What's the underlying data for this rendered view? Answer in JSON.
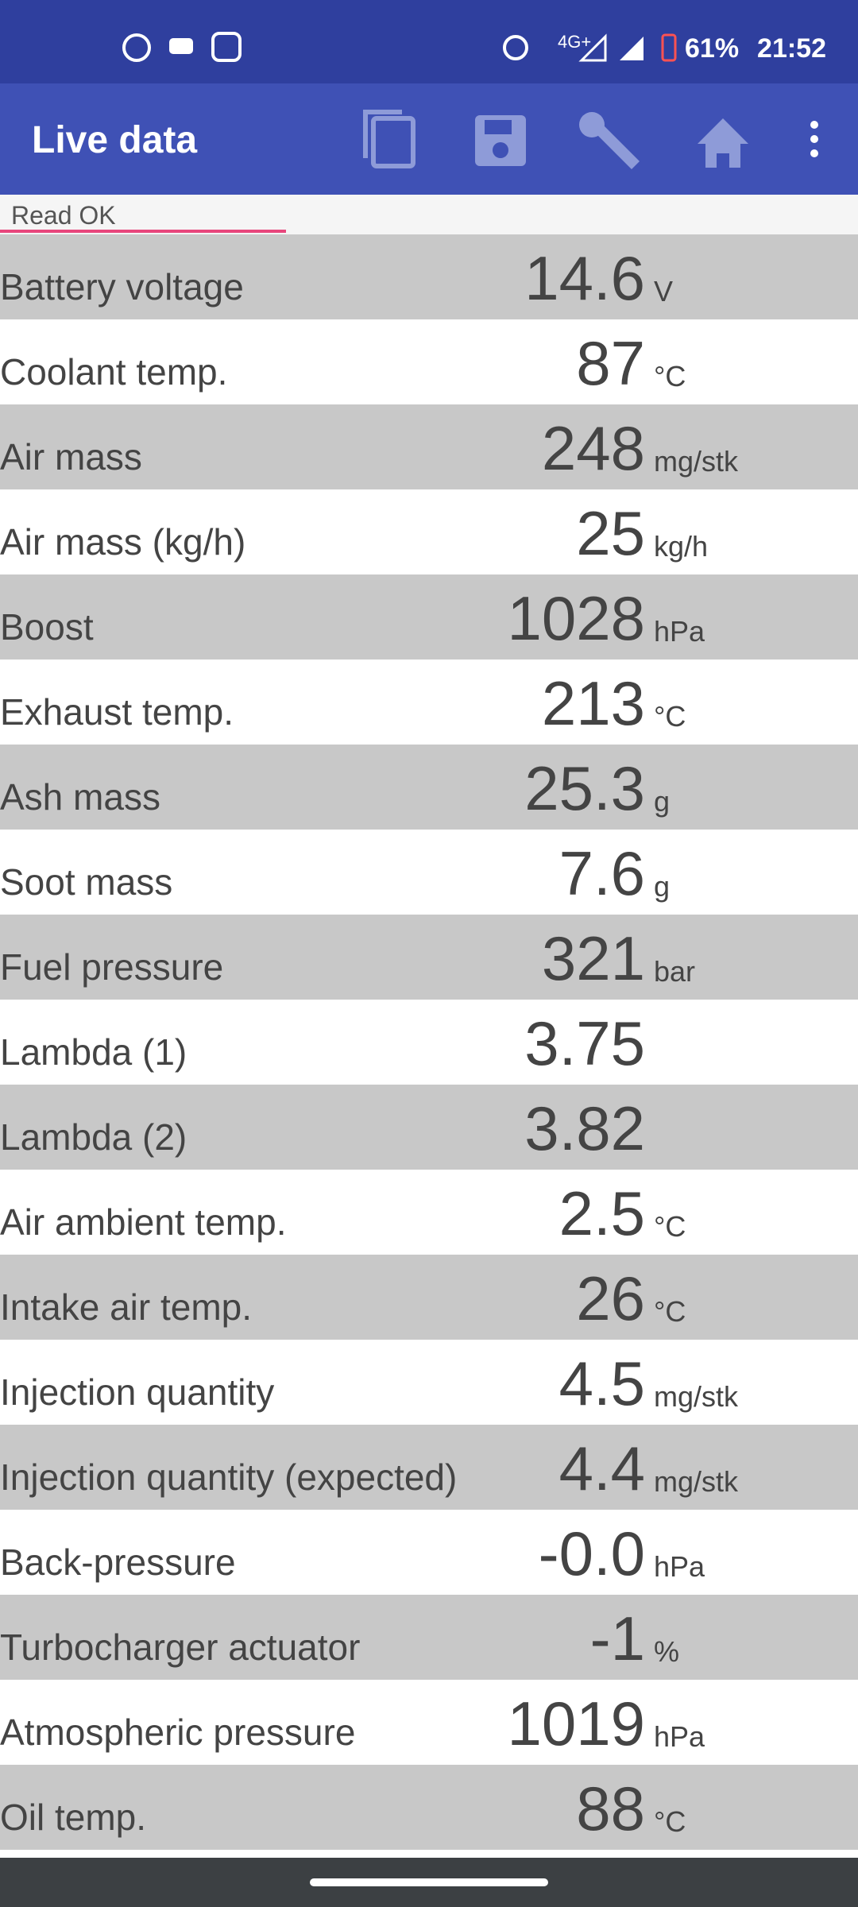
{
  "status_bar": {
    "network": "4G+",
    "battery": "61%",
    "time": "21:52"
  },
  "app_bar": {
    "title": "Live data"
  },
  "status_text": "Read OK",
  "rows": [
    {
      "label": "Battery voltage",
      "value": "14.6",
      "unit": "V"
    },
    {
      "label": "Coolant temp.",
      "value": "87",
      "unit": "°C"
    },
    {
      "label": "Air mass",
      "value": "248",
      "unit": "mg/stk"
    },
    {
      "label": "Air mass (kg/h)",
      "value": "25",
      "unit": "kg/h"
    },
    {
      "label": "Boost",
      "value": "1028",
      "unit": "hPa"
    },
    {
      "label": "Exhaust temp.",
      "value": "213",
      "unit": "°C"
    },
    {
      "label": "Ash mass",
      "value": "25.3",
      "unit": "g"
    },
    {
      "label": "Soot mass",
      "value": "7.6",
      "unit": "g"
    },
    {
      "label": "Fuel pressure",
      "value": "321",
      "unit": "bar"
    },
    {
      "label": "Lambda (1)",
      "value": "3.75"
    },
    {
      "label": "Lambda (2)",
      "value": "3.82"
    },
    {
      "label": "Air ambient temp.",
      "value": "2.5",
      "unit": "°C"
    },
    {
      "label": "Intake air temp.",
      "value": "26",
      "unit": "°C"
    },
    {
      "label": "Injection quantity",
      "value": "4.5",
      "unit": "mg/stk"
    },
    {
      "label": "Injection quantity (expected)",
      "value": "4.4",
      "unit": "mg/stk"
    },
    {
      "label": "Back-pressure",
      "value": "-0.0",
      "unit": "hPa"
    },
    {
      "label": "Turbocharger actuator",
      "value": "-1",
      "unit": "%"
    },
    {
      "label": "Atmospheric pressure",
      "value": "1019",
      "unit": "hPa"
    },
    {
      "label": "Oil temp.",
      "value": "88",
      "unit": "°C"
    }
  ]
}
